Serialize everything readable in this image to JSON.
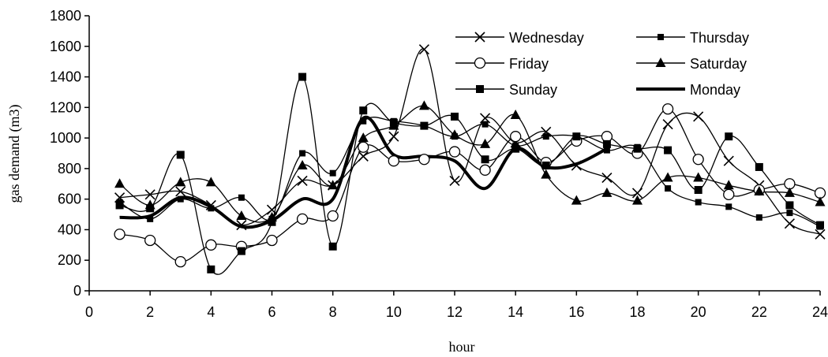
{
  "chart_data": {
    "type": "line",
    "xlabel": "hour",
    "ylabel": "gas demand (m3)",
    "xlim": [
      0,
      24
    ],
    "ylim": [
      0,
      1800
    ],
    "xticks": [
      "0",
      "2",
      "4",
      "6",
      "8",
      "10",
      "12",
      "14",
      "16",
      "18",
      "20",
      "22",
      "24"
    ],
    "yticks": [
      "0",
      "200",
      "400",
      "600",
      "800",
      "1000",
      "1200",
      "1400",
      "1600",
      "1800"
    ],
    "grid": false,
    "legend_position": "top-right",
    "smooth": true,
    "x": [
      1,
      2,
      3,
      4,
      5,
      6,
      7,
      8,
      9,
      10,
      11,
      12,
      13,
      14,
      15,
      16,
      17,
      18,
      19,
      20,
      21,
      22,
      23,
      24
    ],
    "series": [
      {
        "name": "Wednesday",
        "marker": "x",
        "color": "#000000",
        "values": [
          610,
          630,
          650,
          560,
          430,
          530,
          720,
          690,
          880,
          1010,
          1580,
          720,
          1130,
          970,
          1040,
          820,
          740,
          640,
          1090,
          1140,
          850,
          690,
          440,
          370
        ]
      },
      {
        "name": "Thursday",
        "marker": "square-small",
        "color": "#000000",
        "values": [
          580,
          470,
          600,
          540,
          610,
          470,
          900,
          770,
          1110,
          1110,
          1080,
          1010,
          1090,
          950,
          1010,
          1010,
          920,
          940,
          670,
          580,
          550,
          480,
          510,
          420
        ]
      },
      {
        "name": "Friday",
        "marker": "circle",
        "color": "#000000",
        "values": [
          370,
          330,
          190,
          300,
          290,
          330,
          470,
          490,
          940,
          850,
          860,
          910,
          790,
          1010,
          840,
          980,
          1010,
          900,
          1190,
          860,
          630,
          660,
          700,
          640
        ]
      },
      {
        "name": "Saturday",
        "marker": "triangle",
        "color": "#000000",
        "values": [
          700,
          560,
          710,
          710,
          490,
          480,
          820,
          690,
          1000,
          1080,
          1210,
          1020,
          960,
          1150,
          760,
          590,
          640,
          590,
          740,
          740,
          690,
          650,
          640,
          580
        ]
      },
      {
        "name": "Sunday",
        "marker": "square",
        "color": "#000000",
        "values": [
          560,
          540,
          890,
          140,
          260,
          450,
          1400,
          290,
          1180,
          1100,
          1080,
          1140,
          860,
          930,
          820,
          1010,
          960,
          930,
          920,
          660,
          1010,
          810,
          560,
          430
        ]
      },
      {
        "name": "Monday",
        "marker": "none",
        "color": "#000000",
        "bold": true,
        "values": [
          480,
          490,
          610,
          550,
          420,
          460,
          600,
          600,
          1130,
          890,
          880,
          850,
          670,
          930,
          810,
          830,
          930,
          null,
          null,
          null,
          null,
          null,
          null,
          null
        ]
      }
    ]
  }
}
